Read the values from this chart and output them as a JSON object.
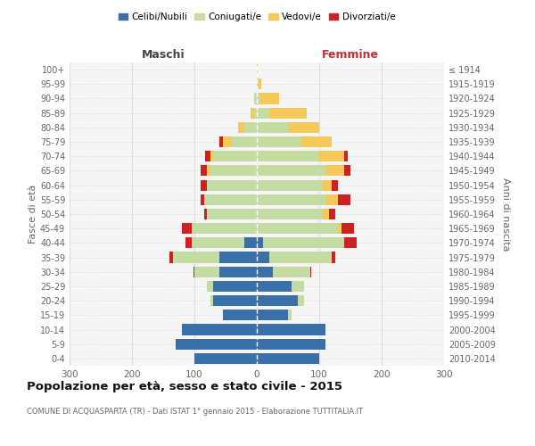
{
  "age_groups": [
    "0-4",
    "5-9",
    "10-14",
    "15-19",
    "20-24",
    "25-29",
    "30-34",
    "35-39",
    "40-44",
    "45-49",
    "50-54",
    "55-59",
    "60-64",
    "65-69",
    "70-74",
    "75-79",
    "80-84",
    "85-89",
    "90-94",
    "95-99",
    "100+"
  ],
  "birth_years": [
    "2010-2014",
    "2005-2009",
    "2000-2004",
    "1995-1999",
    "1990-1994",
    "1985-1989",
    "1980-1984",
    "1975-1979",
    "1970-1974",
    "1965-1969",
    "1960-1964",
    "1955-1959",
    "1950-1954",
    "1945-1949",
    "1940-1944",
    "1935-1939",
    "1930-1934",
    "1925-1929",
    "1920-1924",
    "1915-1919",
    "≤ 1914"
  ],
  "maschi": {
    "celibi": [
      100,
      130,
      120,
      55,
      70,
      70,
      60,
      60,
      20,
      0,
      0,
      0,
      0,
      0,
      0,
      0,
      0,
      0,
      0,
      0,
      0
    ],
    "coniugati": [
      0,
      0,
      0,
      0,
      5,
      10,
      40,
      75,
      85,
      105,
      80,
      85,
      80,
      75,
      70,
      40,
      20,
      5,
      5,
      0,
      0
    ],
    "vedovi": [
      0,
      0,
      0,
      0,
      0,
      0,
      0,
      0,
      0,
      0,
      0,
      0,
      0,
      5,
      5,
      15,
      10,
      5,
      0,
      0,
      0
    ],
    "divorziati": [
      0,
      0,
      0,
      0,
      0,
      0,
      2,
      5,
      10,
      15,
      5,
      5,
      10,
      10,
      8,
      5,
      0,
      0,
      0,
      0,
      0
    ]
  },
  "femmine": {
    "nubili": [
      100,
      110,
      110,
      50,
      65,
      55,
      25,
      20,
      10,
      0,
      0,
      0,
      0,
      0,
      0,
      0,
      0,
      0,
      0,
      0,
      0
    ],
    "coniugate": [
      0,
      0,
      0,
      5,
      10,
      20,
      60,
      100,
      130,
      130,
      105,
      110,
      105,
      110,
      100,
      70,
      50,
      20,
      5,
      2,
      0
    ],
    "vedove": [
      0,
      0,
      0,
      0,
      0,
      0,
      0,
      0,
      0,
      5,
      10,
      20,
      15,
      30,
      40,
      50,
      50,
      60,
      30,
      5,
      2
    ],
    "divorziate": [
      0,
      0,
      0,
      0,
      0,
      0,
      2,
      5,
      20,
      20,
      10,
      20,
      10,
      10,
      5,
      0,
      0,
      0,
      0,
      0,
      0
    ]
  },
  "colors": {
    "celibi": "#3a6fa8",
    "coniugati": "#c5dba4",
    "vedovi": "#f5c85a",
    "divorziati": "#cc2222"
  },
  "title": "Popolazione per età, sesso e stato civile - 2015",
  "subtitle": "COMUNE DI ACQUASPARTA (TR) - Dati ISTAT 1° gennaio 2015 - Elaborazione TUTTITALIA.IT",
  "xlabel_left": "Maschi",
  "xlabel_right": "Femmine",
  "ylabel_left": "Fasce di età",
  "ylabel_right": "Anni di nascita",
  "legend_labels": [
    "Celibi/Nubili",
    "Coniugati/e",
    "Vedovi/e",
    "Divorziati/e"
  ],
  "xlim": 300,
  "bg_color": "#f5f5f5",
  "grid_color": "#dddddd"
}
